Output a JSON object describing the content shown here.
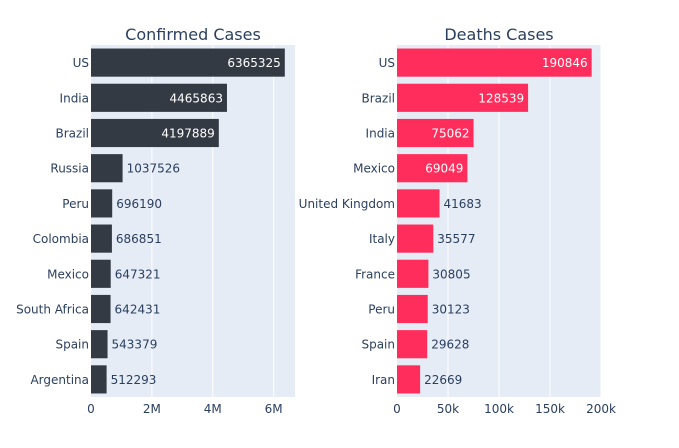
{
  "chart_data": [
    {
      "type": "bar",
      "orientation": "horizontal",
      "title": "Confirmed Cases",
      "categories": [
        "US",
        "India",
        "Brazil",
        "Russia",
        "Peru",
        "Colombia",
        "Mexico",
        "South Africa",
        "Spain",
        "Argentina"
      ],
      "values": [
        6365325,
        4465863,
        4197889,
        1037526,
        696190,
        686851,
        647321,
        642431,
        543379,
        512293
      ],
      "xlim": [
        0,
        6700000
      ],
      "xticks": [
        0,
        2000000,
        4000000,
        6000000
      ],
      "xtick_labels": [
        "0",
        "2M",
        "4M",
        "6M"
      ],
      "bar_color": "#343a44",
      "plot_background": "#e5ecf6",
      "grid": true
    },
    {
      "type": "bar",
      "orientation": "horizontal",
      "title": "Deaths Cases",
      "categories": [
        "US",
        "Brazil",
        "India",
        "Mexico",
        "United Kingdom",
        "Italy",
        "France",
        "Peru",
        "Spain",
        "Iran"
      ],
      "values": [
        190846,
        128539,
        75062,
        69049,
        41683,
        35577,
        30805,
        30123,
        29628,
        22669
      ],
      "xlim": [
        0,
        200000
      ],
      "xticks": [
        0,
        50000,
        100000,
        150000,
        200000
      ],
      "xtick_labels": [
        "0",
        "50k",
        "100k",
        "150k",
        "200k"
      ],
      "bar_color": "#ff2d5c",
      "plot_background": "#e5ecf6",
      "grid": true
    }
  ]
}
